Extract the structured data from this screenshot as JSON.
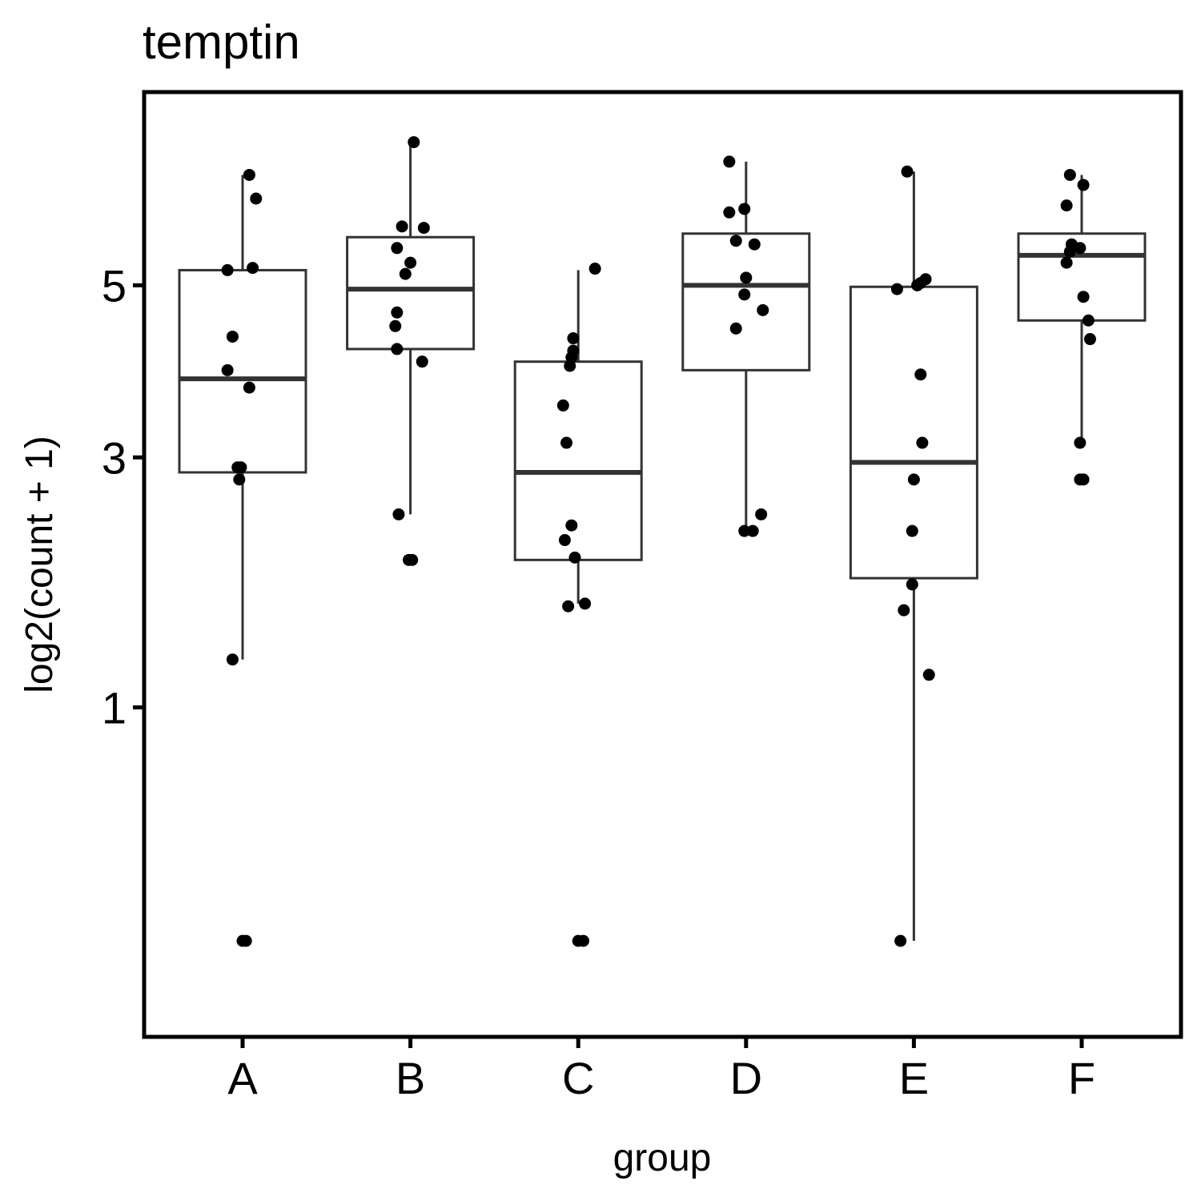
{
  "chart_data": {
    "type": "box",
    "title": "temptin",
    "xlabel": "group",
    "ylabel": "log2(count + 1)",
    "y_scale": "sqrt",
    "ylim": [
      0,
      7.1
    ],
    "yticks": [
      1,
      3,
      5
    ],
    "grid": false,
    "categories": [
      "A",
      "B",
      "C",
      "D",
      "E",
      "F"
    ],
    "boxes": [
      {
        "group": "A",
        "lower_whisker": 1.3,
        "q1": 2.85,
        "median": 3.85,
        "q3": 5.2,
        "upper_whisker": 6.55
      },
      {
        "group": "B",
        "lower_whisker": 2.45,
        "q1": 4.2,
        "median": 4.95,
        "q3": 5.65,
        "upper_whisker": 7.05
      },
      {
        "group": "C",
        "lower_whisker": 1.7,
        "q1": 2.05,
        "median": 2.85,
        "q3": 4.05,
        "upper_whisker": 5.2
      },
      {
        "group": "D",
        "lower_whisker": 2.3,
        "q1": 3.95,
        "median": 5.0,
        "q3": 5.7,
        "upper_whisker": 6.75
      },
      {
        "group": "E",
        "lower_whisker": 0.1,
        "q1": 1.9,
        "median": 2.95,
        "q3": 4.98,
        "upper_whisker": 6.6
      },
      {
        "group": "F",
        "lower_whisker": 3.15,
        "q1": 4.55,
        "median": 5.4,
        "q3": 5.7,
        "upper_whisker": 6.55
      }
    ],
    "points": [
      {
        "group": "A",
        "offset": 0.04,
        "y": 6.55
      },
      {
        "group": "A",
        "offset": 0.08,
        "y": 6.2
      },
      {
        "group": "A",
        "offset": -0.09,
        "y": 5.2
      },
      {
        "group": "A",
        "offset": 0.06,
        "y": 5.23
      },
      {
        "group": "A",
        "offset": -0.06,
        "y": 4.35
      },
      {
        "group": "A",
        "offset": -0.09,
        "y": 3.95
      },
      {
        "group": "A",
        "offset": 0.04,
        "y": 3.75
      },
      {
        "group": "A",
        "offset": -0.03,
        "y": 2.9
      },
      {
        "group": "A",
        "offset": -0.01,
        "y": 2.9
      },
      {
        "group": "A",
        "offset": -0.02,
        "y": 2.78
      },
      {
        "group": "A",
        "offset": -0.06,
        "y": 1.3
      },
      {
        "group": "A",
        "offset": 0.0,
        "y": 0.1
      },
      {
        "group": "A",
        "offset": 0.02,
        "y": 0.1
      },
      {
        "group": "B",
        "offset": 0.02,
        "y": 7.05
      },
      {
        "group": "B",
        "offset": -0.05,
        "y": 5.8
      },
      {
        "group": "B",
        "offset": 0.08,
        "y": 5.78
      },
      {
        "group": "B",
        "offset": -0.08,
        "y": 5.5
      },
      {
        "group": "B",
        "offset": 0.0,
        "y": 5.3
      },
      {
        "group": "B",
        "offset": -0.03,
        "y": 5.15
      },
      {
        "group": "B",
        "offset": -0.08,
        "y": 4.65
      },
      {
        "group": "B",
        "offset": -0.09,
        "y": 4.48
      },
      {
        "group": "B",
        "offset": -0.08,
        "y": 4.2
      },
      {
        "group": "B",
        "offset": 0.07,
        "y": 4.05
      },
      {
        "group": "B",
        "offset": -0.07,
        "y": 2.45
      },
      {
        "group": "B",
        "offset": -0.01,
        "y": 2.05
      },
      {
        "group": "B",
        "offset": 0.01,
        "y": 2.05
      },
      {
        "group": "C",
        "offset": 0.1,
        "y": 5.22
      },
      {
        "group": "C",
        "offset": -0.03,
        "y": 4.33
      },
      {
        "group": "C",
        "offset": -0.03,
        "y": 4.18
      },
      {
        "group": "C",
        "offset": -0.04,
        "y": 4.1
      },
      {
        "group": "C",
        "offset": -0.05,
        "y": 4.0
      },
      {
        "group": "C",
        "offset": -0.09,
        "y": 3.55
      },
      {
        "group": "C",
        "offset": -0.07,
        "y": 3.15
      },
      {
        "group": "C",
        "offset": -0.04,
        "y": 2.35
      },
      {
        "group": "C",
        "offset": -0.08,
        "y": 2.22
      },
      {
        "group": "C",
        "offset": -0.02,
        "y": 2.07
      },
      {
        "group": "C",
        "offset": -0.06,
        "y": 1.68
      },
      {
        "group": "C",
        "offset": 0.04,
        "y": 1.7
      },
      {
        "group": "C",
        "offset": 0.0,
        "y": 0.1
      },
      {
        "group": "C",
        "offset": 0.03,
        "y": 0.1
      },
      {
        "group": "D",
        "offset": -0.1,
        "y": 6.75
      },
      {
        "group": "D",
        "offset": -0.1,
        "y": 6.0
      },
      {
        "group": "D",
        "offset": -0.01,
        "y": 6.05
      },
      {
        "group": "D",
        "offset": -0.06,
        "y": 5.6
      },
      {
        "group": "D",
        "offset": 0.05,
        "y": 5.55
      },
      {
        "group": "D",
        "offset": 0.0,
        "y": 5.1
      },
      {
        "group": "D",
        "offset": -0.01,
        "y": 4.88
      },
      {
        "group": "D",
        "offset": 0.1,
        "y": 4.68
      },
      {
        "group": "D",
        "offset": -0.06,
        "y": 4.45
      },
      {
        "group": "D",
        "offset": 0.09,
        "y": 2.45
      },
      {
        "group": "D",
        "offset": -0.01,
        "y": 2.3
      },
      {
        "group": "D",
        "offset": 0.04,
        "y": 2.3
      },
      {
        "group": "E",
        "offset": -0.04,
        "y": 6.6
      },
      {
        "group": "E",
        "offset": 0.07,
        "y": 5.08
      },
      {
        "group": "E",
        "offset": 0.02,
        "y": 5.0
      },
      {
        "group": "E",
        "offset": -0.1,
        "y": 4.95
      },
      {
        "group": "E",
        "offset": 0.04,
        "y": 5.03
      },
      {
        "group": "E",
        "offset": 0.04,
        "y": 3.9
      },
      {
        "group": "E",
        "offset": 0.05,
        "y": 3.15
      },
      {
        "group": "E",
        "offset": -0.0,
        "y": 2.78
      },
      {
        "group": "E",
        "offset": -0.01,
        "y": 2.3
      },
      {
        "group": "E",
        "offset": -0.01,
        "y": 1.85
      },
      {
        "group": "E",
        "offset": -0.06,
        "y": 1.65
      },
      {
        "group": "E",
        "offset": 0.09,
        "y": 1.2
      },
      {
        "group": "E",
        "offset": -0.08,
        "y": 0.1
      },
      {
        "group": "F",
        "offset": -0.07,
        "y": 6.55
      },
      {
        "group": "F",
        "offset": 0.01,
        "y": 6.4
      },
      {
        "group": "F",
        "offset": -0.09,
        "y": 6.1
      },
      {
        "group": "F",
        "offset": -0.06,
        "y": 5.55
      },
      {
        "group": "F",
        "offset": -0.01,
        "y": 5.5
      },
      {
        "group": "F",
        "offset": -0.07,
        "y": 5.45
      },
      {
        "group": "F",
        "offset": -0.09,
        "y": 5.3
      },
      {
        "group": "F",
        "offset": 0.01,
        "y": 4.85
      },
      {
        "group": "F",
        "offset": 0.04,
        "y": 4.55
      },
      {
        "group": "F",
        "offset": 0.05,
        "y": 4.32
      },
      {
        "group": "F",
        "offset": -0.01,
        "y": 3.15
      },
      {
        "group": "F",
        "offset": -0.01,
        "y": 2.78
      },
      {
        "group": "F",
        "offset": 0.01,
        "y": 2.78
      }
    ]
  }
}
